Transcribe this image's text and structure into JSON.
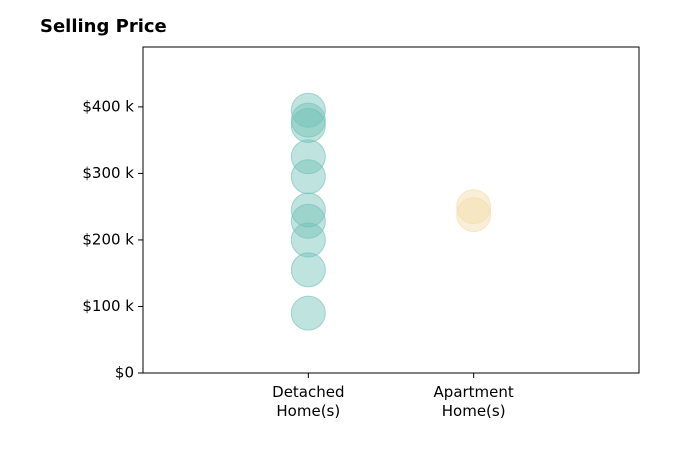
{
  "chart_data": {
    "type": "scatter",
    "title": "Selling Price",
    "xlabel": "",
    "ylabel": "",
    "categories": [
      [
        "Detached",
        "Home(s)"
      ],
      [
        "Apartment",
        "Home(s)"
      ]
    ],
    "xlim": [
      -1,
      2
    ],
    "ylim": [
      0,
      490000
    ],
    "yticks": [
      0,
      100000,
      200000,
      300000,
      400000
    ],
    "ytick_labels": [
      "$0",
      "$100 k",
      "$200 k",
      "$300 k",
      "$400 k"
    ],
    "grid": false,
    "series": [
      {
        "category_index": 0,
        "color": "#72c0b6",
        "values": [
          395000,
          380000,
          372000,
          325000,
          295000,
          245000,
          228000,
          200000,
          155000,
          90000
        ]
      },
      {
        "category_index": 1,
        "color": "#f2dca8",
        "values": [
          250000,
          238000
        ]
      }
    ]
  }
}
